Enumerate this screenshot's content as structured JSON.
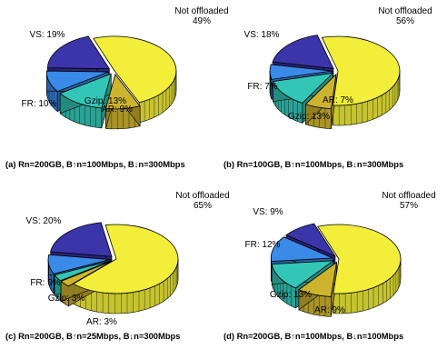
{
  "figure": {
    "palette": {
      "Not offloaded": "#f2ee3a",
      "AR": "#cdb42e",
      "Gzip": "#33c6b6",
      "FR": "#3a8ae8",
      "VS": "#3a35a8"
    },
    "edge_color": "#000000"
  },
  "chart_data": [
    {
      "type": "pie",
      "caption": "(a) Rn=200GB, B↑n=100Mbps, B↓n=300Mbps",
      "slices": [
        {
          "name": "Not offloaded",
          "value": 49,
          "label": [
            "Not offloaded",
            "49%"
          ],
          "exploded": false
        },
        {
          "name": "AR",
          "value": 9,
          "label": [
            "AR: 9%"
          ],
          "exploded": true
        },
        {
          "name": "Gzip",
          "value": 13,
          "label": [
            "Gzip: 13%"
          ],
          "exploded": true
        },
        {
          "name": "FR",
          "value": 10,
          "label": [
            "FR: 10%"
          ],
          "exploded": true
        },
        {
          "name": "VS",
          "value": 19,
          "label": [
            "VS: 19%"
          ],
          "exploded": true
        }
      ]
    },
    {
      "type": "pie",
      "caption": "(b) Rn=100GB, B↑n=100Mbps, B↓n=300Mbps",
      "slices": [
        {
          "name": "Not offloaded",
          "value": 56,
          "label": [
            "Not offloaded",
            "56%"
          ],
          "exploded": false
        },
        {
          "name": "AR",
          "value": 7,
          "label": [
            "AR: 7%"
          ],
          "exploded": true
        },
        {
          "name": "Gzip",
          "value": 13,
          "label": [
            "Gzip: 13%"
          ],
          "exploded": true
        },
        {
          "name": "FR",
          "value": 7,
          "label": [
            "FR: 7%"
          ],
          "exploded": true
        },
        {
          "name": "VS",
          "value": 18,
          "label": [
            "VS: 18%"
          ],
          "exploded": true
        }
      ]
    },
    {
      "type": "pie",
      "caption": "(c) Rn=200GB, B↑n=25Mbps, B↓n=300Mbps",
      "slices": [
        {
          "name": "Not offloaded",
          "value": 65,
          "label": [
            "Not offloaded",
            "65%"
          ],
          "exploded": false
        },
        {
          "name": "AR",
          "value": 3,
          "label": [
            "AR: 3%"
          ],
          "exploded": true
        },
        {
          "name": "Gzip",
          "value": 3,
          "label": [
            "Gzip: 3%"
          ],
          "exploded": true
        },
        {
          "name": "FR",
          "value": 9,
          "label": [
            "FR: 9%"
          ],
          "exploded": true
        },
        {
          "name": "VS",
          "value": 20,
          "label": [
            "VS: 20%"
          ],
          "exploded": true
        }
      ]
    },
    {
      "type": "pie",
      "caption": "(d) Rn=200GB, B↑n=100Mbps, B↓n=100Mbps",
      "slices": [
        {
          "name": "Not offloaded",
          "value": 57,
          "label": [
            "Not offloaded",
            "57%"
          ],
          "exploded": false
        },
        {
          "name": "AR",
          "value": 9,
          "label": [
            "AR: 9%"
          ],
          "exploded": true
        },
        {
          "name": "Gzip",
          "value": 13,
          "label": [
            "Gzip: 13%"
          ],
          "exploded": true
        },
        {
          "name": "FR",
          "value": 12,
          "label": [
            "FR: 12%"
          ],
          "exploded": true
        },
        {
          "name": "VS",
          "value": 9,
          "label": [
            "VS: 9%"
          ],
          "exploded": true
        }
      ]
    }
  ]
}
